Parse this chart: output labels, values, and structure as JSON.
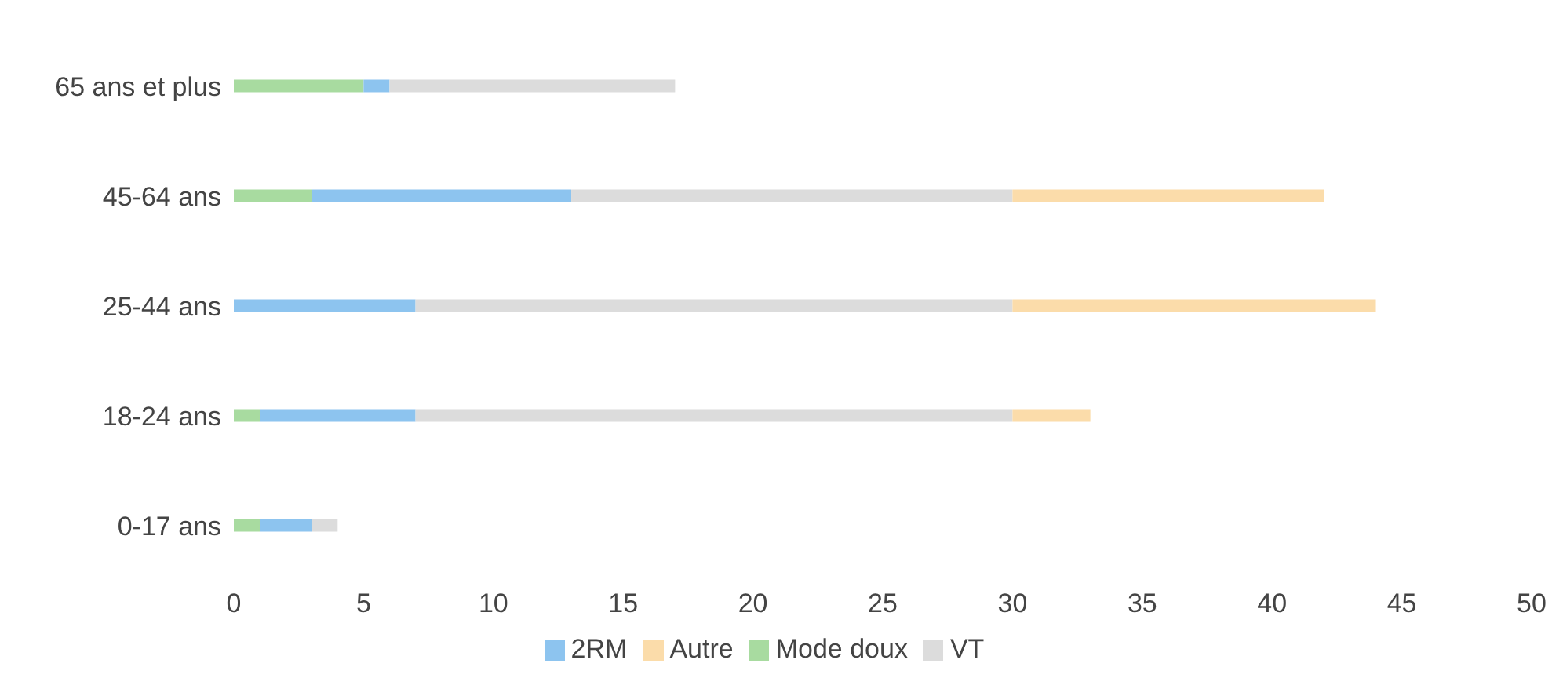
{
  "chart_data": {
    "type": "bar",
    "orientation": "horizontal",
    "stacked": true,
    "categories": [
      "65 ans et plus",
      "45-64 ans",
      "25-44 ans",
      "18-24 ans",
      "0-17 ans"
    ],
    "series": [
      {
        "name": "Mode doux",
        "color": "#a8dba0",
        "values": [
          5,
          3,
          0,
          1,
          1
        ]
      },
      {
        "name": "2RM",
        "color": "#8dc4ef",
        "values": [
          1,
          10,
          7,
          6,
          2
        ]
      },
      {
        "name": "VT",
        "color": "#dcdcdc",
        "values": [
          11,
          17,
          23,
          23,
          1
        ]
      },
      {
        "name": "Autre",
        "color": "#fbdcaa",
        "values": [
          0,
          12,
          14,
          3,
          0
        ]
      }
    ],
    "xlim": [
      0,
      50
    ],
    "xticks": [
      0,
      5,
      10,
      15,
      20,
      25,
      30,
      35,
      40,
      45,
      50
    ],
    "grid": false,
    "legend": "bottom"
  }
}
